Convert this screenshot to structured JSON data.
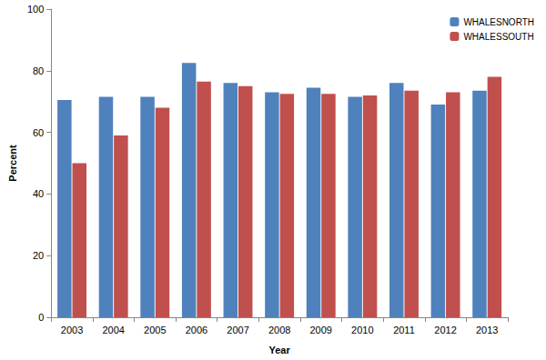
{
  "chart_data": {
    "type": "bar",
    "x_label": "Year",
    "y_label": "Percent",
    "categories": [
      "2003",
      "2004",
      "2005",
      "2006",
      "2007",
      "2008",
      "2009",
      "2010",
      "2011",
      "2012",
      "2013"
    ],
    "series": [
      {
        "name": "WHALESNORTH",
        "color": "#4f81bd",
        "values": [
          70.5,
          71.5,
          71.5,
          82.5,
          76,
          73,
          74.5,
          71.5,
          76,
          69,
          73.5
        ]
      },
      {
        "name": "WHALESSOUTH",
        "color": "#c0504d",
        "values": [
          50,
          59,
          68,
          76.5,
          75,
          72.5,
          72.5,
          72,
          73.5,
          73,
          78
        ]
      }
    ],
    "ylim": [
      0,
      100
    ],
    "yticks": [
      0,
      20,
      40,
      60,
      80,
      100
    ],
    "grid": false,
    "legend": "top-right"
  }
}
